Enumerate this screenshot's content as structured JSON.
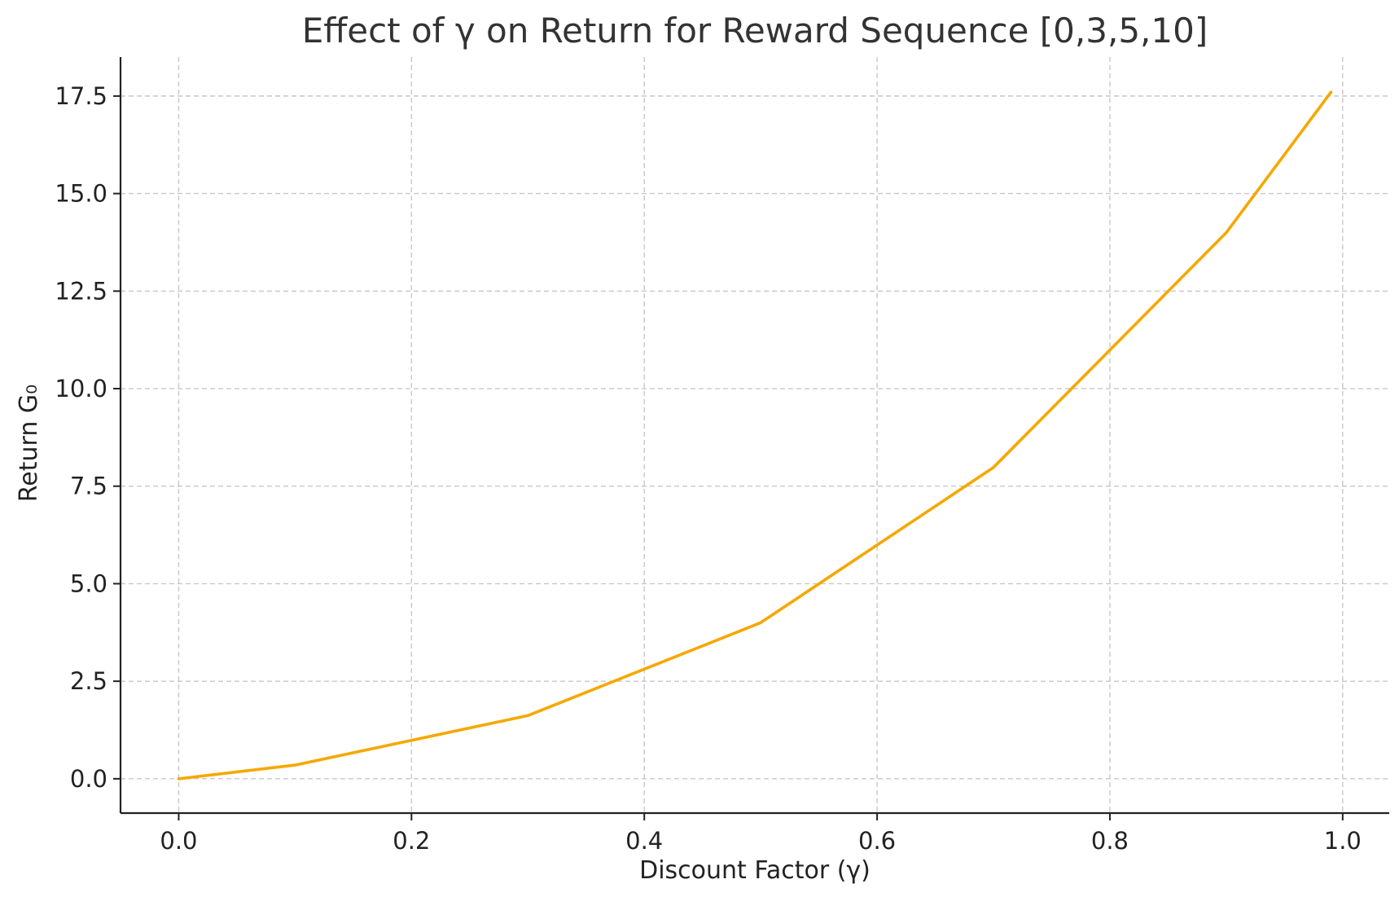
{
  "chart_data": {
    "type": "line",
    "title": "Effect of γ on Return for Reward Sequence [0,3,5,10]",
    "xlabel": "Discount Factor (γ)",
    "ylabel": "Return G₀",
    "x": [
      0.0,
      0.1,
      0.3,
      0.5,
      0.7,
      0.9,
      0.99
    ],
    "series": [
      {
        "values": [
          0.0,
          0.35,
          1.62,
          4.0,
          7.98,
          14.0,
          17.6
        ],
        "color": "#f5a800"
      }
    ],
    "xlim": [
      -0.05,
      1.04
    ],
    "ylim": [
      -0.88,
      18.5
    ],
    "x_ticks": [
      0.0,
      0.2,
      0.4,
      0.6,
      0.8,
      1.0
    ],
    "x_tick_labels": [
      "0.0",
      "0.2",
      "0.4",
      "0.6",
      "0.8",
      "1.0"
    ],
    "y_ticks": [
      0.0,
      2.5,
      5.0,
      7.5,
      10.0,
      12.5,
      15.0,
      17.5
    ],
    "y_tick_labels": [
      "0.0",
      "2.5",
      "5.0",
      "7.5",
      "10.0",
      "12.5",
      "15.0",
      "17.5"
    ],
    "grid": true,
    "legend": false
  }
}
